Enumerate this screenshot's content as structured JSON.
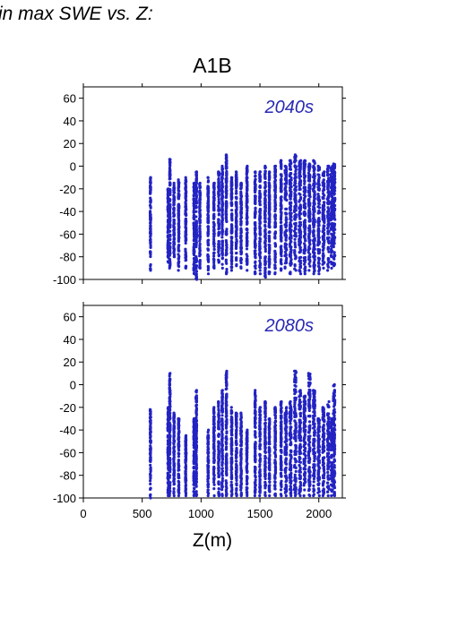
{
  "header": {
    "title": "in max SWE vs. Z:",
    "scenario": "A1B"
  },
  "chart_data": {
    "type": "scatter",
    "xlabel": "Z(m)",
    "xlim": [
      0,
      2200
    ],
    "ylim": [
      -100,
      70
    ],
    "x_ticks": [
      0,
      500,
      1000,
      1500,
      2000
    ],
    "y_ticks": [
      -100,
      -80,
      -60,
      -40,
      -20,
      0,
      20,
      40,
      60
    ],
    "point_color": "#2323c3",
    "panels": [
      {
        "label": "2040s",
        "elevation_clusters": [
          {
            "x": 570,
            "ymin": -92,
            "ymax": -10
          },
          {
            "x": 720,
            "ymin": -85,
            "ymax": -20
          },
          {
            "x": 735,
            "ymin": -90,
            "ymax": 6
          },
          {
            "x": 770,
            "ymin": -80,
            "ymax": -15
          },
          {
            "x": 810,
            "ymin": -92,
            "ymax": -12
          },
          {
            "x": 870,
            "ymin": -90,
            "ymax": -10
          },
          {
            "x": 940,
            "ymin": -95,
            "ymax": -15
          },
          {
            "x": 960,
            "ymin": -100,
            "ymax": -5
          },
          {
            "x": 990,
            "ymin": -90,
            "ymax": -15
          },
          {
            "x": 1060,
            "ymin": -95,
            "ymax": -10
          },
          {
            "x": 1110,
            "ymin": -90,
            "ymax": -15
          },
          {
            "x": 1150,
            "ymin": -85,
            "ymax": -5
          },
          {
            "x": 1180,
            "ymin": -90,
            "ymax": 0
          },
          {
            "x": 1215,
            "ymin": -95,
            "ymax": 10
          },
          {
            "x": 1260,
            "ymin": -92,
            "ymax": -10
          },
          {
            "x": 1300,
            "ymin": -88,
            "ymax": -5
          },
          {
            "x": 1340,
            "ymin": -90,
            "ymax": -15
          },
          {
            "x": 1390,
            "ymin": -92,
            "ymax": 0
          },
          {
            "x": 1460,
            "ymin": -95,
            "ymax": -5
          },
          {
            "x": 1500,
            "ymin": -95,
            "ymax": -5
          },
          {
            "x": 1545,
            "ymin": -98,
            "ymax": 0
          },
          {
            "x": 1580,
            "ymin": -95,
            "ymax": -5
          },
          {
            "x": 1630,
            "ymin": -95,
            "ymax": 0
          },
          {
            "x": 1680,
            "ymin": -92,
            "ymax": 5
          },
          {
            "x": 1720,
            "ymin": -90,
            "ymax": 0
          },
          {
            "x": 1760,
            "ymin": -95,
            "ymax": 5
          },
          {
            "x": 1800,
            "ymin": -92,
            "ymax": 10
          },
          {
            "x": 1840,
            "ymin": -95,
            "ymax": 5
          },
          {
            "x": 1880,
            "ymin": -95,
            "ymax": 5
          },
          {
            "x": 1920,
            "ymin": -92,
            "ymax": 2
          },
          {
            "x": 1960,
            "ymin": -95,
            "ymax": 5
          },
          {
            "x": 2000,
            "ymin": -95,
            "ymax": 0
          },
          {
            "x": 2040,
            "ymin": -90,
            "ymax": -5
          },
          {
            "x": 2080,
            "ymin": -92,
            "ymax": 0
          },
          {
            "x": 2110,
            "ymin": -90,
            "ymax": 0
          },
          {
            "x": 2130,
            "ymin": -88,
            "ymax": 2
          }
        ]
      },
      {
        "label": "2080s",
        "elevation_clusters": [
          {
            "x": 570,
            "ymin": -100,
            "ymax": -22
          },
          {
            "x": 720,
            "ymin": -98,
            "ymax": -20
          },
          {
            "x": 735,
            "ymin": -98,
            "ymax": 10
          },
          {
            "x": 770,
            "ymin": -98,
            "ymax": -25
          },
          {
            "x": 810,
            "ymin": -98,
            "ymax": -30
          },
          {
            "x": 870,
            "ymin": -98,
            "ymax": -45
          },
          {
            "x": 940,
            "ymin": -98,
            "ymax": -30
          },
          {
            "x": 960,
            "ymin": -98,
            "ymax": -5
          },
          {
            "x": 1060,
            "ymin": -98,
            "ymax": -40
          },
          {
            "x": 1110,
            "ymin": -98,
            "ymax": -20
          },
          {
            "x": 1150,
            "ymin": -98,
            "ymax": -15
          },
          {
            "x": 1180,
            "ymin": -98,
            "ymax": -5
          },
          {
            "x": 1215,
            "ymin": -98,
            "ymax": 12
          },
          {
            "x": 1260,
            "ymin": -98,
            "ymax": -20
          },
          {
            "x": 1300,
            "ymin": -98,
            "ymax": -25
          },
          {
            "x": 1340,
            "ymin": -98,
            "ymax": -25
          },
          {
            "x": 1390,
            "ymin": -98,
            "ymax": -40
          },
          {
            "x": 1460,
            "ymin": -98,
            "ymax": -5
          },
          {
            "x": 1500,
            "ymin": -98,
            "ymax": -20
          },
          {
            "x": 1545,
            "ymin": -98,
            "ymax": -15
          },
          {
            "x": 1580,
            "ymin": -98,
            "ymax": -30
          },
          {
            "x": 1630,
            "ymin": -98,
            "ymax": -20
          },
          {
            "x": 1680,
            "ymin": -98,
            "ymax": -15
          },
          {
            "x": 1720,
            "ymin": -98,
            "ymax": -20
          },
          {
            "x": 1760,
            "ymin": -98,
            "ymax": -15
          },
          {
            "x": 1800,
            "ymin": -98,
            "ymax": 12
          },
          {
            "x": 1840,
            "ymin": -98,
            "ymax": -5
          },
          {
            "x": 1880,
            "ymin": -98,
            "ymax": -10
          },
          {
            "x": 1920,
            "ymin": -98,
            "ymax": 10
          },
          {
            "x": 1960,
            "ymin": -98,
            "ymax": -5
          },
          {
            "x": 2000,
            "ymin": -98,
            "ymax": -30
          },
          {
            "x": 2040,
            "ymin": -98,
            "ymax": -20
          },
          {
            "x": 2080,
            "ymin": -98,
            "ymax": -15
          },
          {
            "x": 2110,
            "ymin": -98,
            "ymax": -30
          },
          {
            "x": 2130,
            "ymin": -98,
            "ymax": 0
          }
        ]
      }
    ]
  }
}
